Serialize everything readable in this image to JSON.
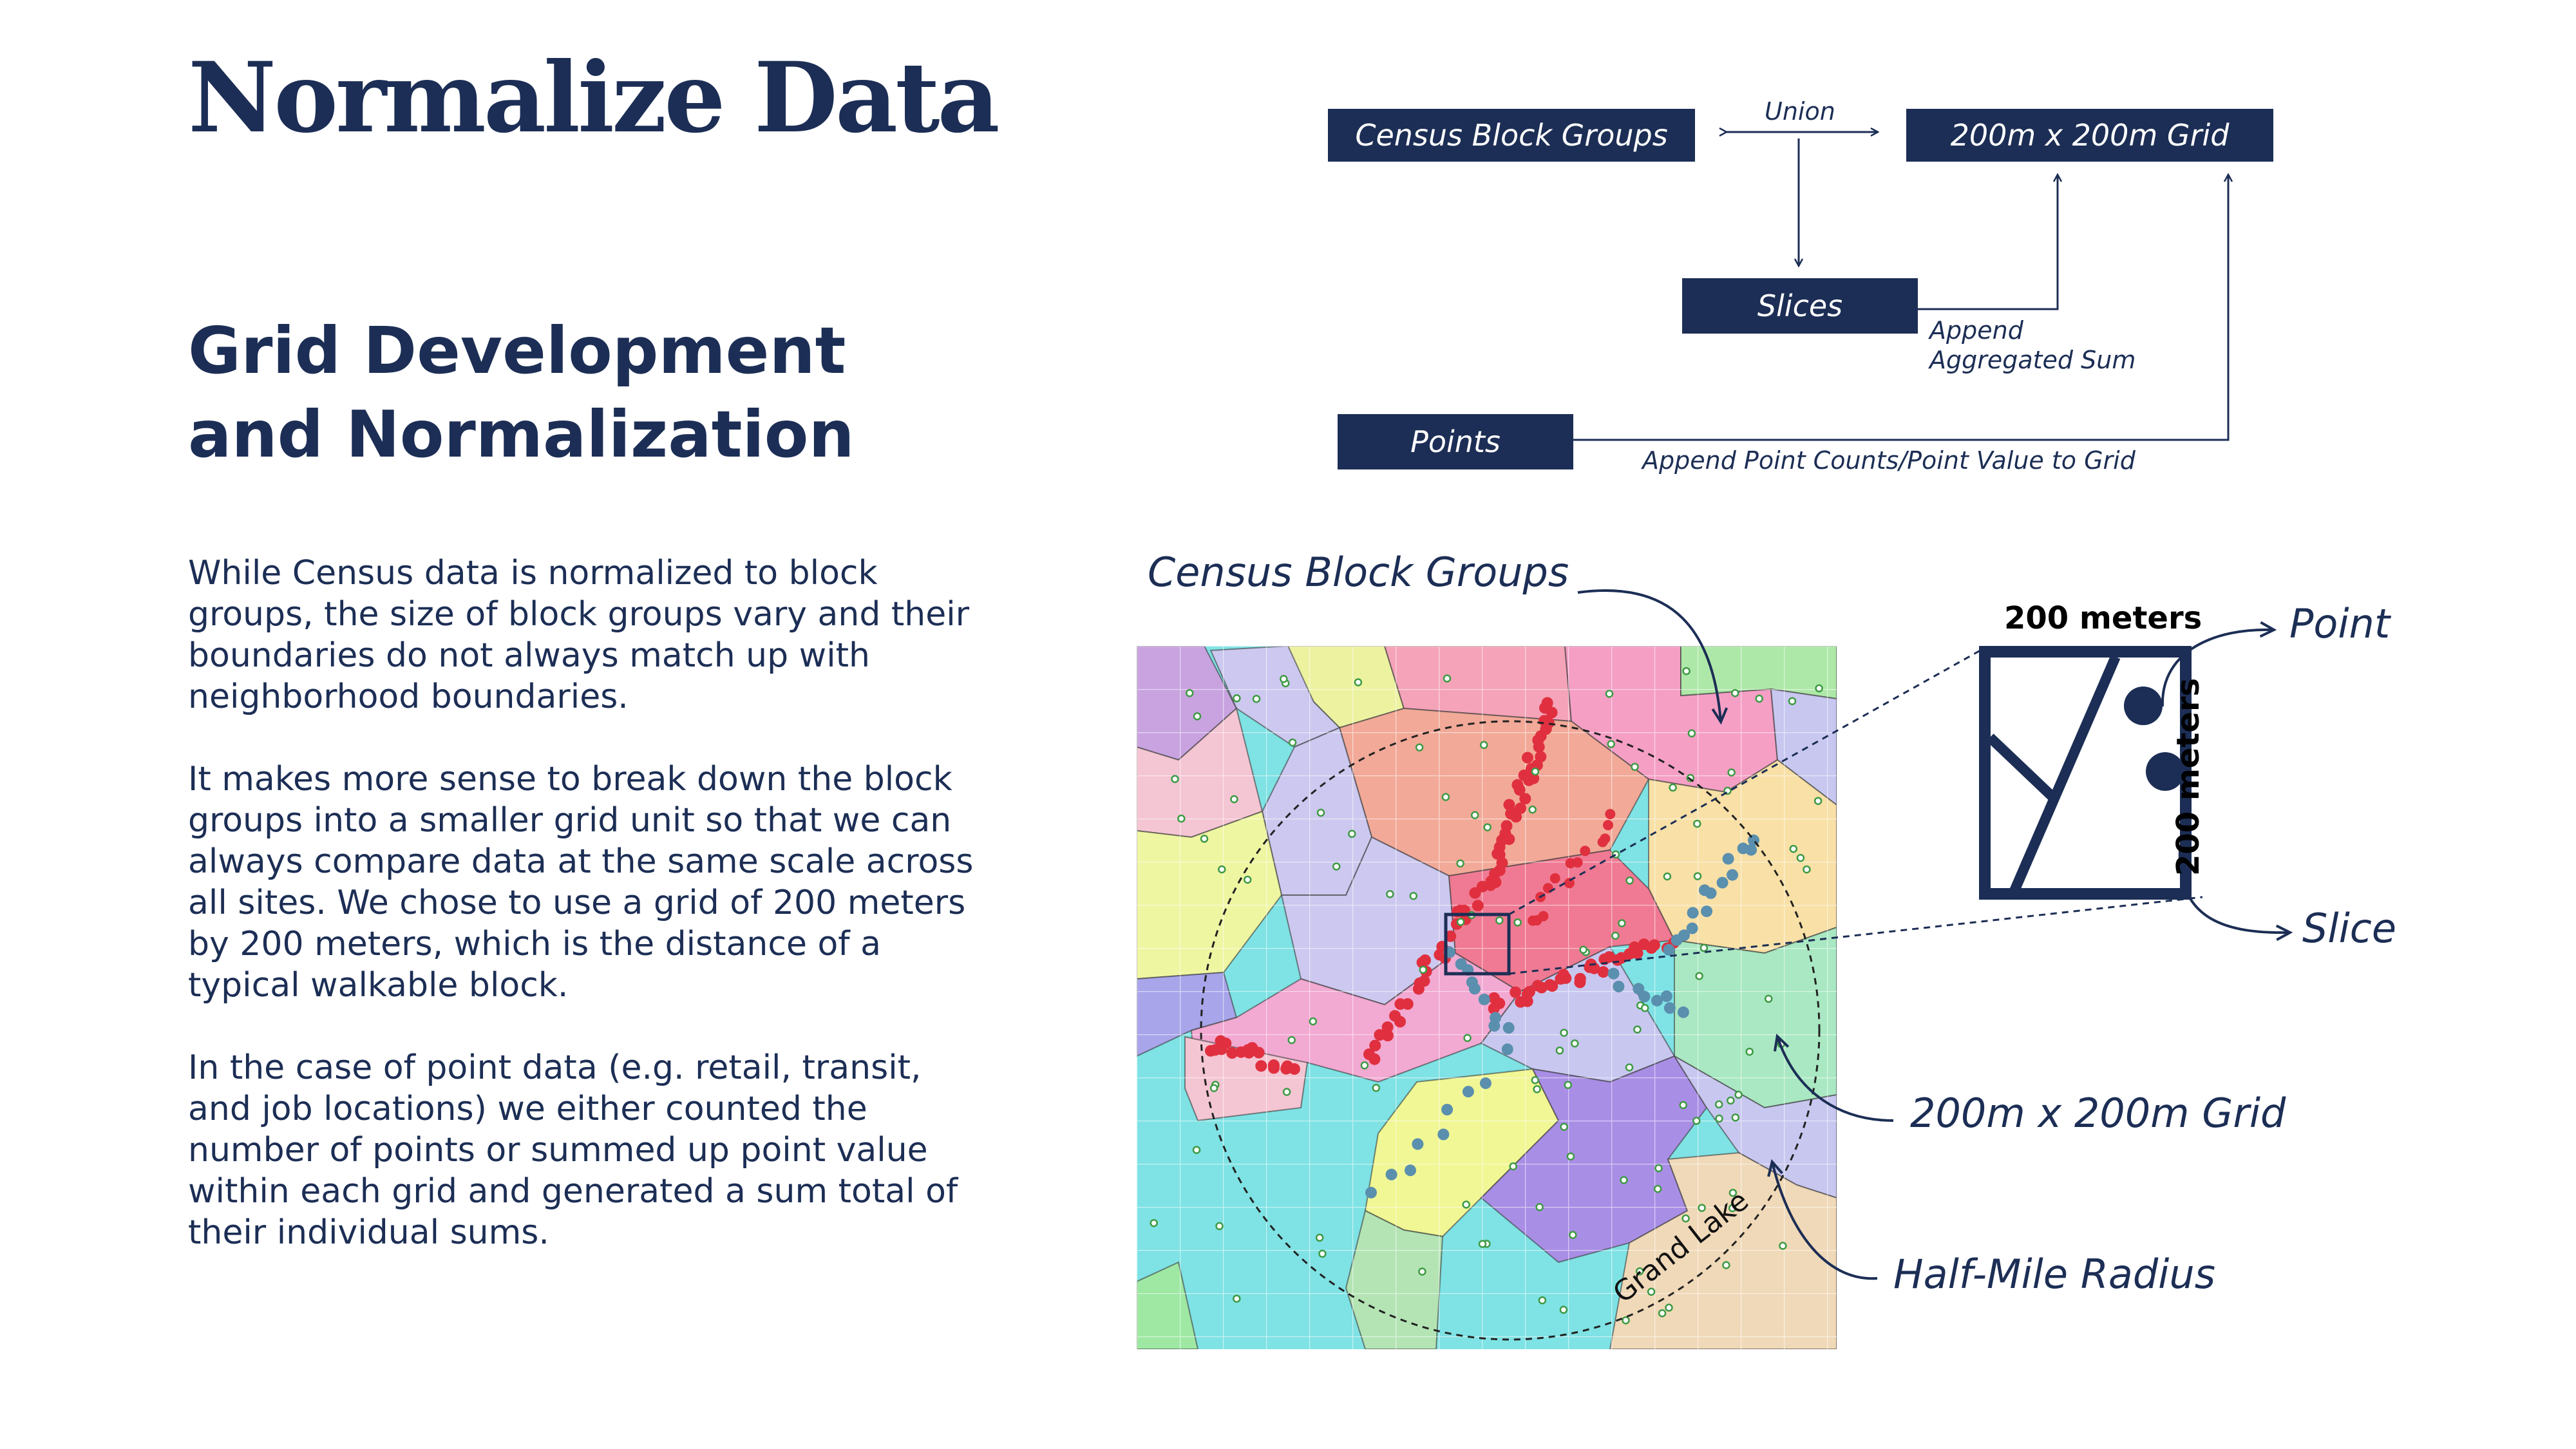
{
  "title": "Normalize Data",
  "subtitle": [
    "Grid Development",
    "and Normalization"
  ],
  "paragraphs": [
    "While Census data is normalized to block groups, the size of block groups vary and their boundaries do not always match up with neighborhood boundaries.",
    "It makes more sense to break down the block groups into a smaller grid unit so that we can always compare data at the same scale across all sites. We chose to use a grid of 200 meters by 200 meters, which is the distance of a typical walkable block.",
    "In the case of point data (e.g. retail, transit, and job locations) we either counted the number of points or summed up point value within each grid and generated a sum total of their individual sums."
  ],
  "flow": {
    "census_block_groups": "Census Block Groups",
    "grid": "200m x 200m Grid",
    "slices": "Slices",
    "points": "Points",
    "union_label": "Union",
    "append_sum_label": [
      "Append",
      "Aggregated Sum"
    ],
    "append_points_label": "Append Point Counts/Point Value to Grid"
  },
  "map": {
    "place_label": "Grand Lake",
    "callouts": {
      "census_block_groups": "Census Block Groups",
      "grid": "200m x 200m Grid",
      "half_mile_radius": "Half-Mile Radius"
    }
  },
  "detail": {
    "top_label": "200 meters",
    "side_label": "200 meters",
    "point_label": "Point",
    "slice_label": "Slice"
  },
  "colors": {
    "navy": "#1c2e55",
    "red_points": "#e0303f",
    "blue_points": "#5a8fae",
    "map_bg": "#7fe2e4"
  }
}
